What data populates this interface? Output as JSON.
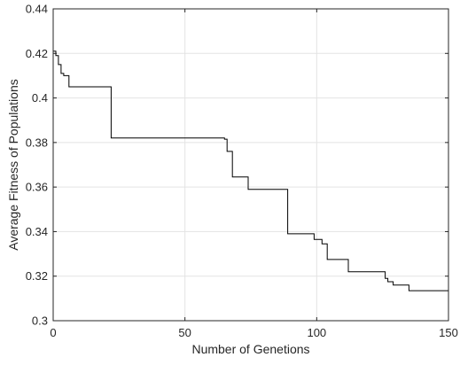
{
  "chart_data": {
    "type": "line",
    "title": "",
    "xlabel": "Number of Genetions",
    "ylabel": "Average Fitness of Populations",
    "xlim": [
      0,
      150
    ],
    "ylim": [
      0.3,
      0.44
    ],
    "xticks": [
      0,
      50,
      100,
      150
    ],
    "yticks": [
      0.3,
      0.32,
      0.34,
      0.36,
      0.38,
      0.4,
      0.42,
      0.44
    ],
    "xtick_labels": [
      "0",
      "50",
      "100",
      "150"
    ],
    "ytick_labels": [
      "0.3",
      "0.32",
      "0.34",
      "0.36",
      "0.38",
      "0.4",
      "0.42",
      "0.44"
    ],
    "grid": true,
    "legend": "none",
    "line_color": "#000000",
    "series": [
      {
        "step": true,
        "x": [
          0,
          1,
          2,
          3,
          4,
          6,
          22,
          65,
          66,
          68,
          74,
          89,
          99,
          102,
          104,
          112,
          126,
          127,
          129,
          135,
          150
        ],
        "y": [
          0.421,
          0.419,
          0.415,
          0.411,
          0.41,
          0.405,
          0.382,
          0.3815,
          0.376,
          0.3645,
          0.359,
          0.339,
          0.3365,
          0.3345,
          0.3275,
          0.322,
          0.319,
          0.3175,
          0.316,
          0.3135,
          0.3135
        ]
      }
    ]
  }
}
